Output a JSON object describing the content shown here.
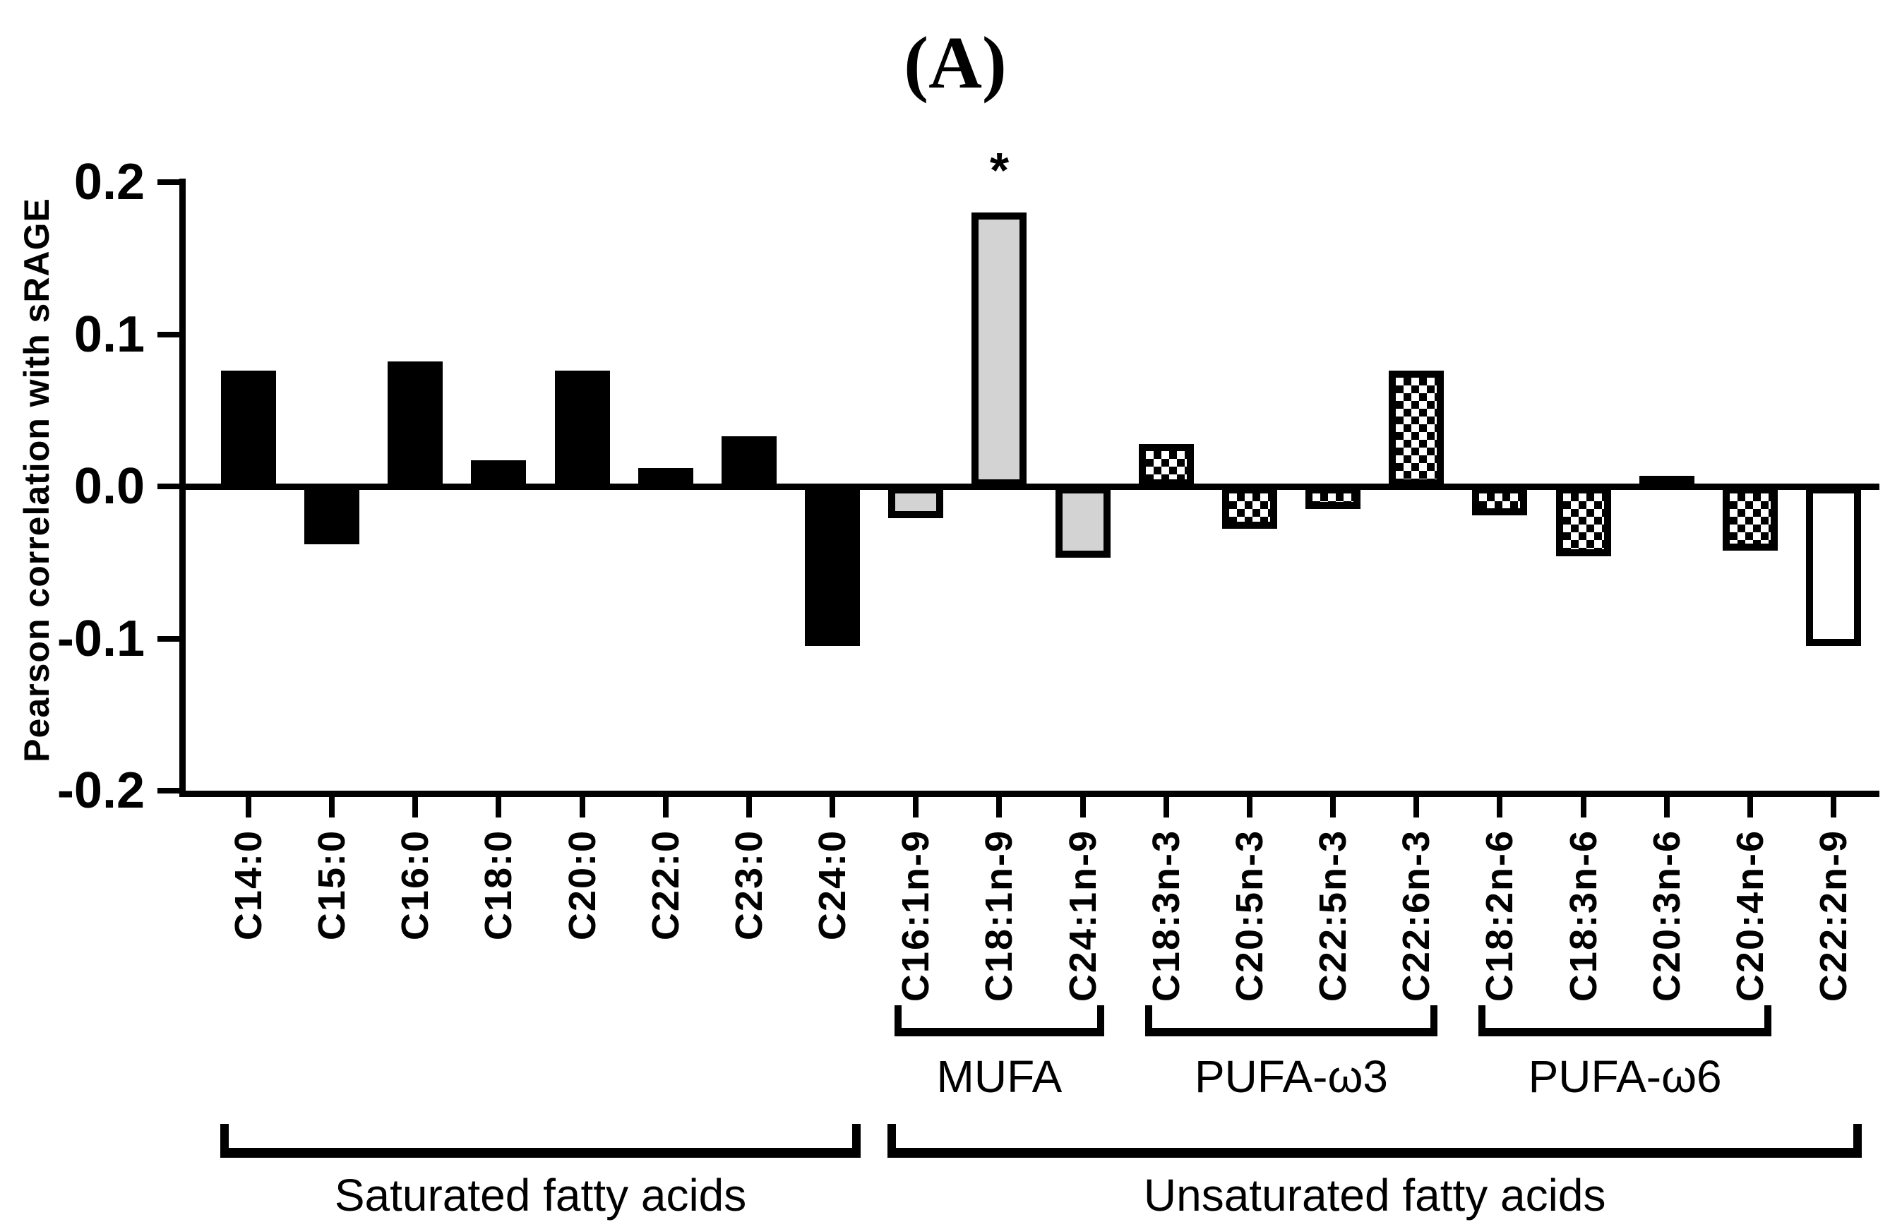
{
  "title": "(A)",
  "chart_data": {
    "type": "bar",
    "title": "(A)",
    "ylabel": "Pearson correlation with sRAGE",
    "xlabel": "",
    "ylim": [
      -0.2,
      0.2
    ],
    "yticks": [
      0.2,
      0.1,
      0.0,
      -0.1,
      -0.2
    ],
    "ytick_labels": [
      "0.2",
      "0.1",
      "0.0",
      "-0.1",
      "-0.2"
    ],
    "grid": false,
    "legend": "none",
    "categories": [
      "C14:0",
      "C15:0",
      "C16:0",
      "C18:0",
      "C20:0",
      "C22:0",
      "C23:0",
      "C24:0",
      "C16:1n-9",
      "C18:1n-9",
      "C24:1n-9",
      "C18:3n-3",
      "C20:5n-3",
      "C22:5n-3",
      "C22:6n-3",
      "C18:2n-6",
      "C18:3n-6",
      "C20:3n-6",
      "C20:4n-6",
      "C22:2n-9"
    ],
    "values": [
      0.076,
      -0.038,
      0.082,
      0.017,
      0.076,
      0.012,
      0.033,
      -0.105,
      -0.021,
      0.18,
      -0.047,
      0.028,
      -0.028,
      -0.015,
      0.076,
      -0.019,
      -0.046,
      0.007,
      -0.042,
      -0.105
    ],
    "bar_styles": [
      "black",
      "black",
      "black",
      "black",
      "black",
      "black",
      "black",
      "black",
      "gray",
      "gray",
      "gray",
      "checker",
      "checker",
      "checker",
      "checker",
      "checker",
      "checker",
      "checker",
      "checker",
      "white"
    ],
    "annotations": [
      {
        "category": "C18:1n-9",
        "text": "*"
      }
    ],
    "groups": [
      {
        "label": "MUFA",
        "from": "C16:1n-9",
        "to": "C24:1n-9"
      },
      {
        "label": "PUFA-ω3",
        "from": "C18:3n-3",
        "to": "C22:6n-3"
      },
      {
        "label": "PUFA-ω6",
        "from": "C18:2n-6",
        "to": "C20:4n-6"
      }
    ],
    "super_groups": [
      {
        "label": "Saturated fatty acids",
        "from": "C14:0",
        "to": "C24:0"
      },
      {
        "label": "Unsaturated fatty acids",
        "from": "C16:1n-9",
        "to": "C22:2n-9"
      }
    ]
  },
  "styles": {
    "background": "#ffffff",
    "axis_color": "#000000",
    "text_color": "#000000",
    "bar_black": "#000000",
    "bar_gray": "#d3d3d3",
    "bar_white": "#ffffff",
    "bar_border": "#000000"
  }
}
